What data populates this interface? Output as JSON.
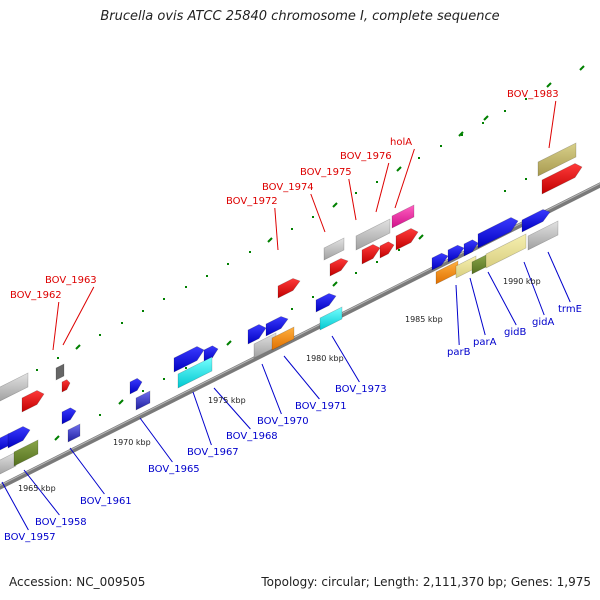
{
  "title": "Brucella ovis ATCC 25840 chromosome I, complete sequence",
  "footer": {
    "accession": "Accession: NC_009505",
    "summary": "Topology: circular; Length: 2,111,370 bp; Genes: 1,975"
  },
  "colors": {
    "backbone": "#777777",
    "tick": "#008000",
    "label_top": "#dd0000",
    "label_bottom": "#0000cc"
  },
  "scale": {
    "unit": "kbp",
    "ticks": [
      {
        "kb": 1965,
        "label": "1965 kbp"
      },
      {
        "kb": 1970,
        "label": "1970 kbp"
      },
      {
        "kb": 1975,
        "label": "1975 kbp"
      },
      {
        "kb": 1980,
        "label": "1980 kbp"
      },
      {
        "kb": 1985,
        "label": "1985 kbp"
      },
      {
        "kb": 1990,
        "label": "1990 kbp"
      }
    ]
  },
  "labels_top": [
    "BOV_1962",
    "BOV_1963",
    "BOV_1972",
    "BOV_1974",
    "BOV_1975",
    "BOV_1976",
    "holA",
    "BOV_1983"
  ],
  "labels_bottom": [
    "BOV_1957",
    "BOV_1958",
    "BOV_1961",
    "BOV_1965",
    "BOV_1967",
    "BOV_1968",
    "BOV_1970",
    "BOV_1971",
    "BOV_1973",
    "parB",
    "parA",
    "gidB",
    "gidA",
    "trmE"
  ],
  "features": [
    {
      "color": "blue"
    },
    {
      "color": "gray"
    },
    {
      "color": "red"
    },
    {
      "color": "olive"
    },
    {
      "color": "cyan"
    },
    {
      "color": "orange"
    },
    {
      "color": "magenta"
    },
    {
      "color": "khaki"
    },
    {
      "color": "green"
    },
    {
      "color": "navy"
    }
  ]
}
